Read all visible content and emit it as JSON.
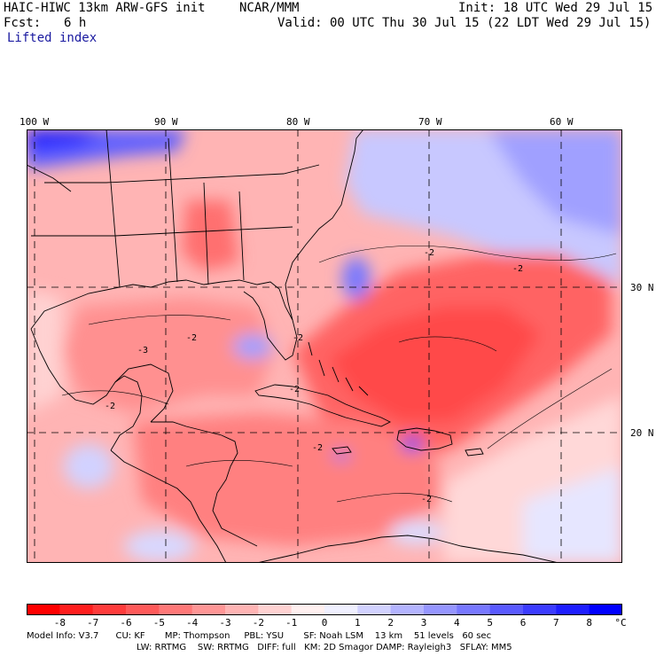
{
  "header": {
    "model": "HAIC-HIWC 13km ARW-GFS init",
    "org": "NCAR/MMM",
    "init": "Init: 18 UTC Wed 29 Jul 15",
    "fcst_label": "Fcst:",
    "fcst_value": "6 h",
    "valid": "Valid: 00 UTC Thu 30 Jul 15 (22 LDT Wed 29 Jul 15)",
    "field": "Lifted index"
  },
  "map": {
    "lon_labels": [
      "100 W",
      "90 W",
      "80 W",
      "70 W",
      "60 W"
    ],
    "lat_labels": [
      "30 N",
      "20 N"
    ],
    "contour_labels": [
      "-2",
      "-2",
      "-2",
      "-3",
      "-2",
      "-2",
      "-2",
      "-2",
      "-2"
    ]
  },
  "colorbar": {
    "ticks": [
      "-8",
      "-7",
      "-6",
      "-5",
      "-4",
      "-3",
      "-2",
      "-1",
      "0",
      "1",
      "2",
      "3",
      "4",
      "5",
      "6",
      "7",
      "8"
    ],
    "unit": "°C",
    "colors": [
      "#ff0000",
      "#ff1e1e",
      "#ff3c3c",
      "#ff5a5a",
      "#ff7878",
      "#ff9696",
      "#ffb4b4",
      "#ffd2d2",
      "#fff0f0",
      "#f0f0ff",
      "#d2d2ff",
      "#b4b4ff",
      "#9696ff",
      "#7878ff",
      "#5a5aff",
      "#3c3cff",
      "#1e1eff",
      "#0000ff"
    ]
  },
  "footer": {
    "line1": "Model Info: V3.7      CU: KF       MP: Thompson     PBL: YSU       SF: Noah LSM    13 km    51 levels   60 sec",
    "line2": "LW: RRTMG    SW: RRTMG   DIFF: full   KM: 2D Smagor DAMP: Rayleigh3   SFLAY: MM5"
  }
}
